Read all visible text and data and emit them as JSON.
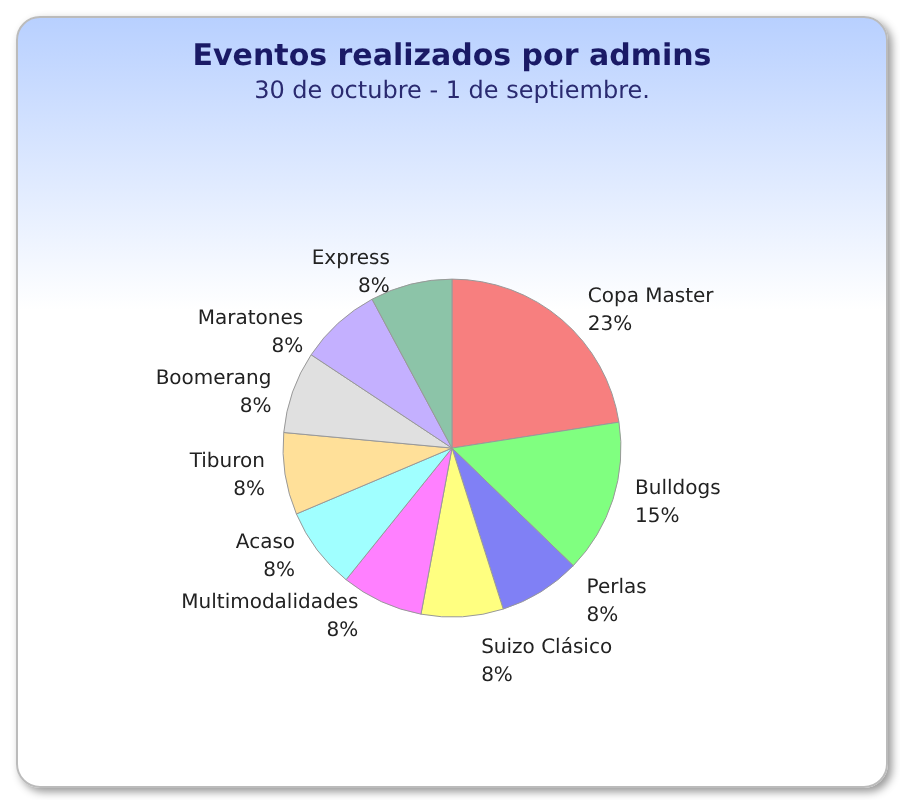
{
  "chart_data": {
    "type": "pie",
    "title": "Eventos realizados por admins",
    "subtitle": "30 de octubre - 1 de septiembre.",
    "categories": [
      "Copa Master",
      "Bulldogs",
      "Perlas",
      "Suizo Clásico",
      "Multimodalidades",
      "Acaso",
      "Tiburon",
      "Boomerang",
      "Maratones",
      "Express"
    ],
    "values": [
      23,
      15,
      8,
      8,
      8,
      8,
      8,
      8,
      8,
      8
    ],
    "colors": [
      "#f77f7f",
      "#80ff80",
      "#8080f5",
      "#ffff80",
      "#ff80ff",
      "#a0ffff",
      "#ffe099",
      "#e0e0e0",
      "#c4b0ff",
      "#8cc4a8"
    ],
    "value_labels": [
      "23%",
      "15%",
      "8%",
      "8%",
      "8%",
      "8%",
      "8%",
      "8%",
      "8%",
      "8%"
    ],
    "legend": false
  }
}
